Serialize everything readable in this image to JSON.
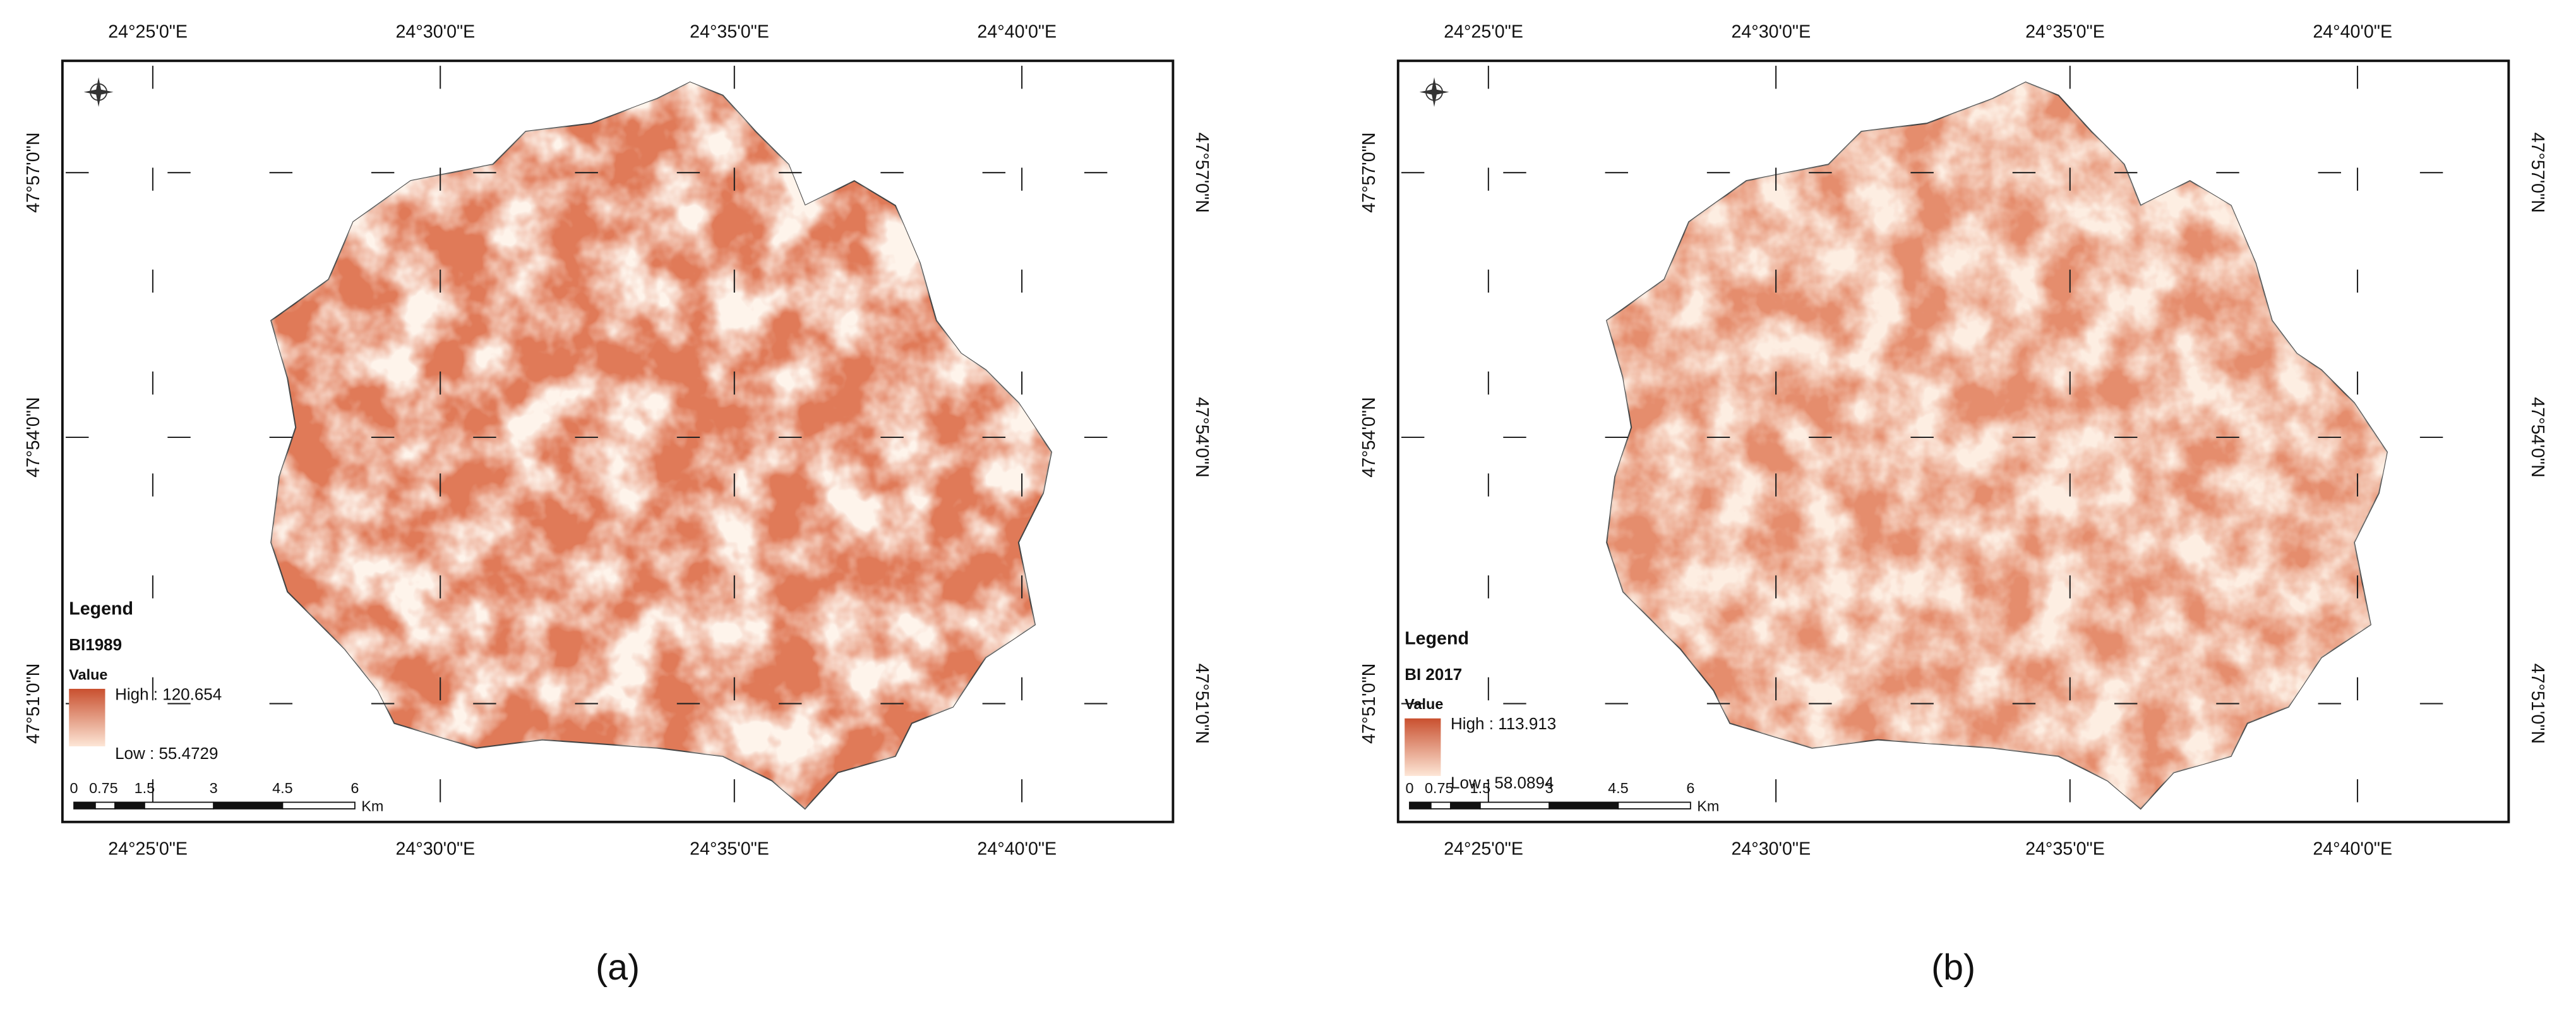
{
  "panels": [
    {
      "caption": "(a)",
      "lon_labels": [
        "24°25'0\"E",
        "24°30'0\"E",
        "24°35'0\"E",
        "24°40'0\"E"
      ],
      "lat_labels": [
        "47°57'0\"N",
        "47°54'0\"N",
        "47°51'0\"N"
      ],
      "legend": {
        "title": "Legend",
        "layer": "BI1989",
        "field": "Value",
        "high": "High : 120.654",
        "low": "Low : 55.4729"
      },
      "scale_bar": {
        "labels": [
          "0",
          "0.75",
          "1.5",
          "3",
          "4.5",
          "6"
        ],
        "unit": "Km"
      }
    },
    {
      "caption": "(b)",
      "lon_labels": [
        "24°25'0\"E",
        "24°30'0\"E",
        "24°35'0\"E",
        "24°40'0\"E"
      ],
      "lat_labels": [
        "47°57'0\"N",
        "47°54'0\"N",
        "47°51'0\"N"
      ],
      "legend": {
        "title": "Legend",
        "layer": "BI 2017",
        "field": "Value",
        "high": "High : 113.913",
        "low": "Low : 58.0894"
      },
      "scale_bar": {
        "labels": [
          "0",
          "0.75",
          "1.5",
          "3",
          "4.5",
          "6"
        ],
        "unit": "Km"
      }
    }
  ]
}
